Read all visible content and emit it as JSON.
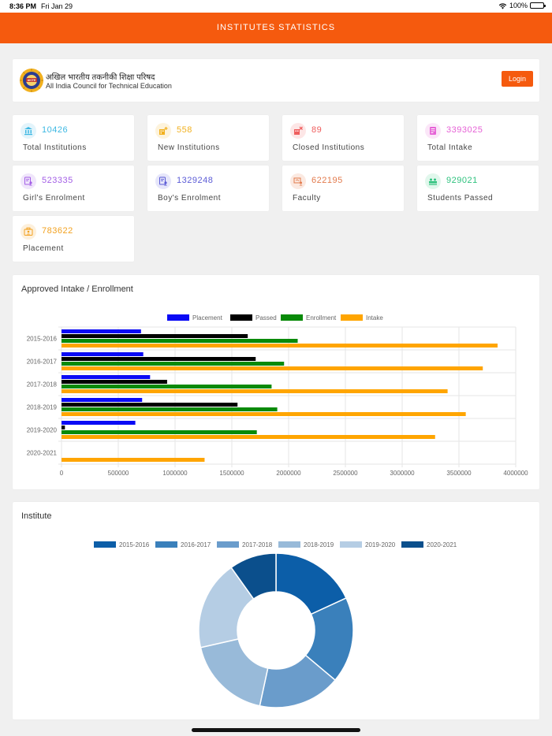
{
  "status_bar": {
    "time": "8:36 PM",
    "date": "Fri Jan 29",
    "battery": "100%"
  },
  "header": {
    "title": "INSTITUTES STATISTICS"
  },
  "org": {
    "hindi_name": "अखिल भारतीय तकनीकी शिक्षा परिषद",
    "english_name": "All India Council for Technical Education",
    "logo_text": "AICTE",
    "login_label": "Login"
  },
  "stats": [
    {
      "value": "10426",
      "label": "Total Institutions",
      "color": "#3db8e3",
      "bg": "#e3f4fb",
      "icon": "building-icon"
    },
    {
      "value": "558",
      "label": "New Institutions",
      "color": "#f2b11f",
      "bg": "#fdf3dc",
      "icon": "new-building-icon"
    },
    {
      "value": "89",
      "label": "Closed Institutions",
      "color": "#ef5e5e",
      "bg": "#fde6e6",
      "icon": "closed-building-icon"
    },
    {
      "value": "3393025",
      "label": "Total Intake",
      "color": "#e661d6",
      "bg": "#fbe6f8",
      "icon": "intake-icon"
    },
    {
      "value": "523335",
      "label": "Girl's Enrolment",
      "color": "#a35ee6",
      "bg": "#f0e6fb",
      "icon": "girl-enrolment-icon"
    },
    {
      "value": "1329248",
      "label": "Boy's Enrolment",
      "color": "#5b5bd6",
      "bg": "#e6e6fa",
      "icon": "boy-enrolment-icon"
    },
    {
      "value": "622195",
      "label": "Faculty",
      "color": "#e27a4c",
      "bg": "#fbe9e1",
      "icon": "faculty-icon"
    },
    {
      "value": "929021",
      "label": "Students Passed",
      "color": "#2ec27e",
      "bg": "#e1f7ec",
      "icon": "students-passed-icon"
    },
    {
      "value": "783622",
      "label": "Placement",
      "color": "#f2a11f",
      "bg": "#fdf0dc",
      "icon": "placement-icon"
    }
  ],
  "chart_data": [
    {
      "type": "bar",
      "orientation": "horizontal",
      "title": "Approved Intake / Enrollment",
      "categories": [
        "2015-2016",
        "2016-2017",
        "2017-2018",
        "2018-2019",
        "2019-2020",
        "2020-2021"
      ],
      "series": [
        {
          "name": "Placement",
          "color": "#0a0af5",
          "values": [
            700000,
            720000,
            780000,
            710000,
            650000,
            0
          ]
        },
        {
          "name": "Passed",
          "color": "#000000",
          "values": [
            1640000,
            1710000,
            930000,
            1550000,
            30000,
            0
          ]
        },
        {
          "name": "Enrollment",
          "color": "#098a09",
          "values": [
            2080000,
            1960000,
            1850000,
            1900000,
            1720000,
            0
          ]
        },
        {
          "name": "Intake",
          "color": "#ffa500",
          "values": [
            3840000,
            3710000,
            3400000,
            3560000,
            3290000,
            1260000
          ]
        }
      ],
      "xlim": [
        0,
        4000000
      ],
      "xticks": [
        "0",
        "500000",
        "1000000",
        "1500000",
        "2000000",
        "2500000",
        "3000000",
        "3500000",
        "4000000"
      ],
      "legend_position": "top"
    },
    {
      "type": "pie",
      "title": "Institute",
      "categories": [
        "2015-2016",
        "2016-2017",
        "2017-2018",
        "2018-2019",
        "2019-2020",
        "2020-2021"
      ],
      "values": [
        10426,
        10364,
        9933,
        10390,
        10773,
        5665
      ],
      "colors": [
        "#0c5ea8",
        "#3a80bb",
        "#6a9ccb",
        "#98bad9",
        "#b5cde4",
        "#0b4f8c"
      ],
      "legend_position": "top"
    }
  ]
}
